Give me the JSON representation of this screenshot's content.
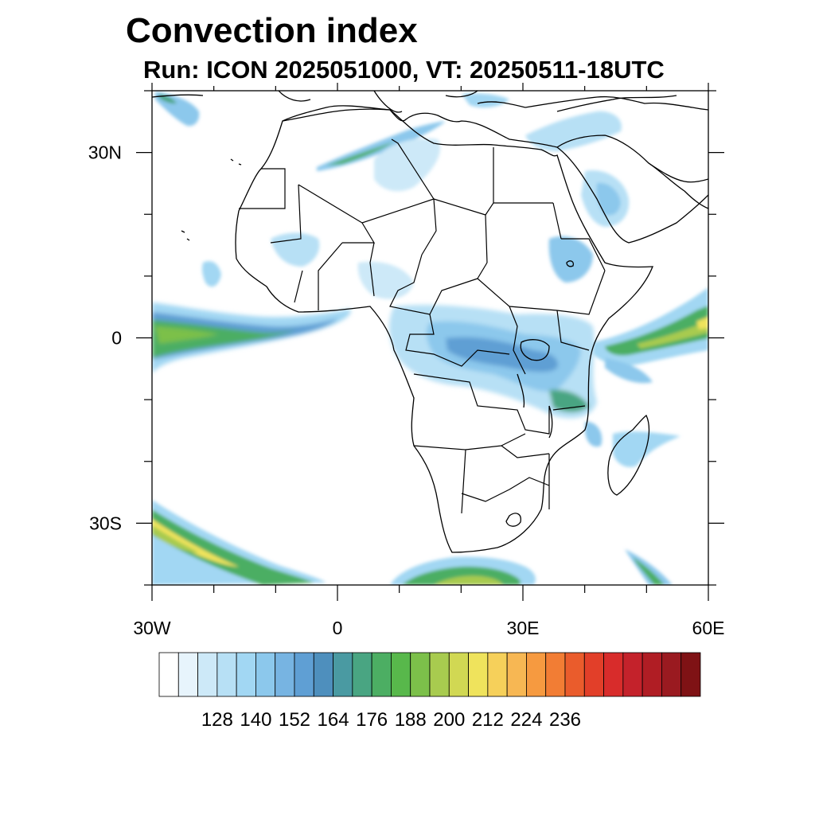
{
  "title": "Convection index",
  "subtitle": "Run: ICON 2025051000,  VT: 20250511-18UTC",
  "map": {
    "region": "Africa",
    "lon_range": [
      -30,
      60
    ],
    "lat_range": [
      -40,
      40
    ],
    "lat_ticks": [
      {
        "value": 30,
        "label": "30N"
      },
      {
        "value": 0,
        "label": "0"
      },
      {
        "value": -30,
        "label": "30S"
      }
    ],
    "lon_ticks": [
      {
        "value": -30,
        "label": "30W"
      },
      {
        "value": 0,
        "label": "0"
      },
      {
        "value": 30,
        "label": "30E"
      },
      {
        "value": 60,
        "label": "60E"
      }
    ]
  },
  "colorbar": {
    "labels": [
      "128",
      "140",
      "152",
      "164",
      "176",
      "188",
      "200",
      "212",
      "224",
      "236"
    ],
    "colors": [
      "#ffffff",
      "#e7f4fc",
      "#cde9f8",
      "#b7e0f5",
      "#a2d7f3",
      "#8cc8ec",
      "#77b4e2",
      "#5f9fd4",
      "#4e8fbd",
      "#4a9aa2",
      "#49a582",
      "#4cae63",
      "#58b84b",
      "#7cc04a",
      "#a8cb4f",
      "#d1d853",
      "#efe35c",
      "#f6d05a",
      "#f7b753",
      "#f69a40",
      "#f27d34",
      "#ea5c2c",
      "#e23f29",
      "#d82c2b",
      "#c4222b",
      "#b01d24",
      "#9a1a20",
      "#7f1215"
    ]
  },
  "chart_data": {
    "type": "heatmap",
    "title": "Convection index",
    "subtitle": "Run: ICON 2025051000,  VT: 20250511-18UTC",
    "x_axis": {
      "range": [
        -30,
        60
      ],
      "ticks": [
        "30W",
        "0",
        "30E",
        "60E"
      ]
    },
    "y_axis": {
      "range": [
        -40,
        40
      ],
      "ticks": [
        "30N",
        "0",
        "30S"
      ]
    },
    "colorbar_ticks": [
      128,
      140,
      152,
      164,
      176,
      188,
      200,
      212,
      224,
      236
    ],
    "regions": [
      {
        "name": "Equatorial Atlantic band",
        "lon": [
          -30,
          2
        ],
        "lat": [
          -3,
          5
        ],
        "level": 164
      },
      {
        "name": "Congo basin / East Africa",
        "lon": [
          10,
          42
        ],
        "lat": [
          -12,
          5
        ],
        "level": 152
      },
      {
        "name": "Western Indian Ocean band",
        "lon": [
          42,
          60
        ],
        "lat": [
          -3,
          8
        ],
        "level": 176
      },
      {
        "name": "Southern Ocean front (southwest)",
        "lon": [
          -30,
          -3
        ],
        "lat": [
          -40,
          -27
        ],
        "level": 188
      },
      {
        "name": "Southern Ocean front (south)",
        "lon": [
          8,
          32
        ],
        "lat": [
          -40,
          -36
        ],
        "level": 170
      },
      {
        "name": "Southern Indian Ocean front",
        "lon": [
          45,
          55
        ],
        "lat": [
          -40,
          -34
        ],
        "level": 176
      },
      {
        "name": "Sahara band",
        "lon": [
          -5,
          12
        ],
        "lat": [
          27,
          32
        ],
        "level": 158
      },
      {
        "name": "Arabian Peninsula",
        "lon": [
          38,
          50
        ],
        "lat": [
          16,
          27
        ],
        "level": 140
      },
      {
        "name": "Madagascar",
        "lon": [
          43,
          52
        ],
        "lat": [
          -25,
          -12
        ],
        "level": 140
      }
    ]
  }
}
